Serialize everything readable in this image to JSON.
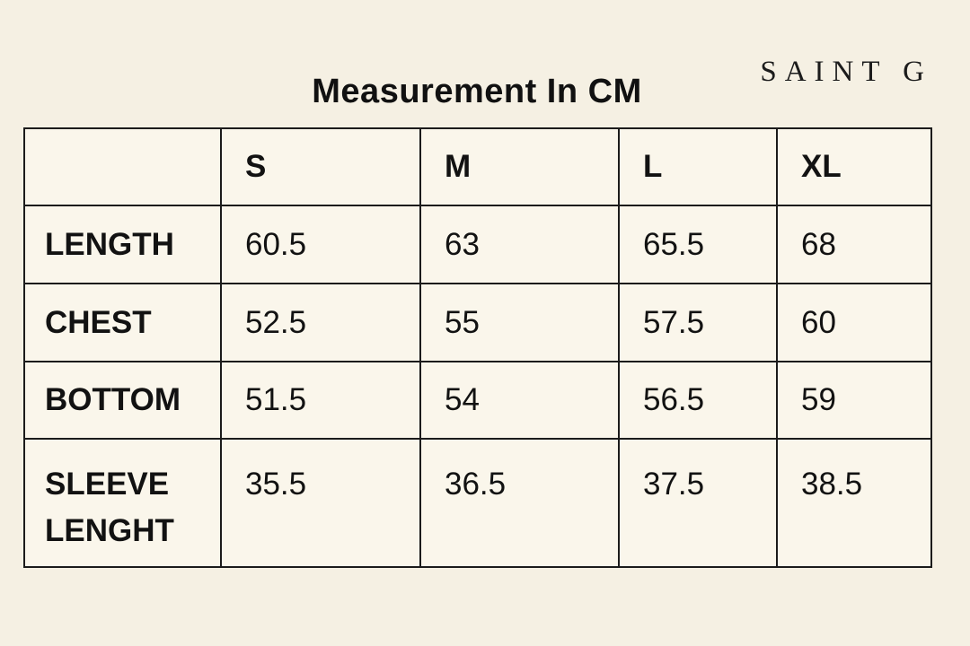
{
  "header": {
    "title": "Measurement In CM",
    "brand": "SAINT G"
  },
  "colors": {
    "background": "#f5f0e3",
    "cell_background": "#faf6eb",
    "grid_border": "#1b1b1b",
    "text": "#121212"
  },
  "chart_data": {
    "type": "table",
    "title": "Measurement In CM",
    "unit": "cm",
    "columns": [
      "",
      "S",
      "M",
      "L",
      "XL"
    ],
    "rows": [
      [
        "LENGTH",
        "60.5",
        "63",
        "65.5",
        "68"
      ],
      [
        "CHEST",
        "52.5",
        "55",
        "57.5",
        "60"
      ],
      [
        "BOTTOM",
        "51.5",
        "54",
        "56.5",
        "59"
      ],
      [
        "SLEEVE LENGHT",
        "35.5",
        "36.5",
        "37.5",
        "38.5"
      ]
    ]
  }
}
